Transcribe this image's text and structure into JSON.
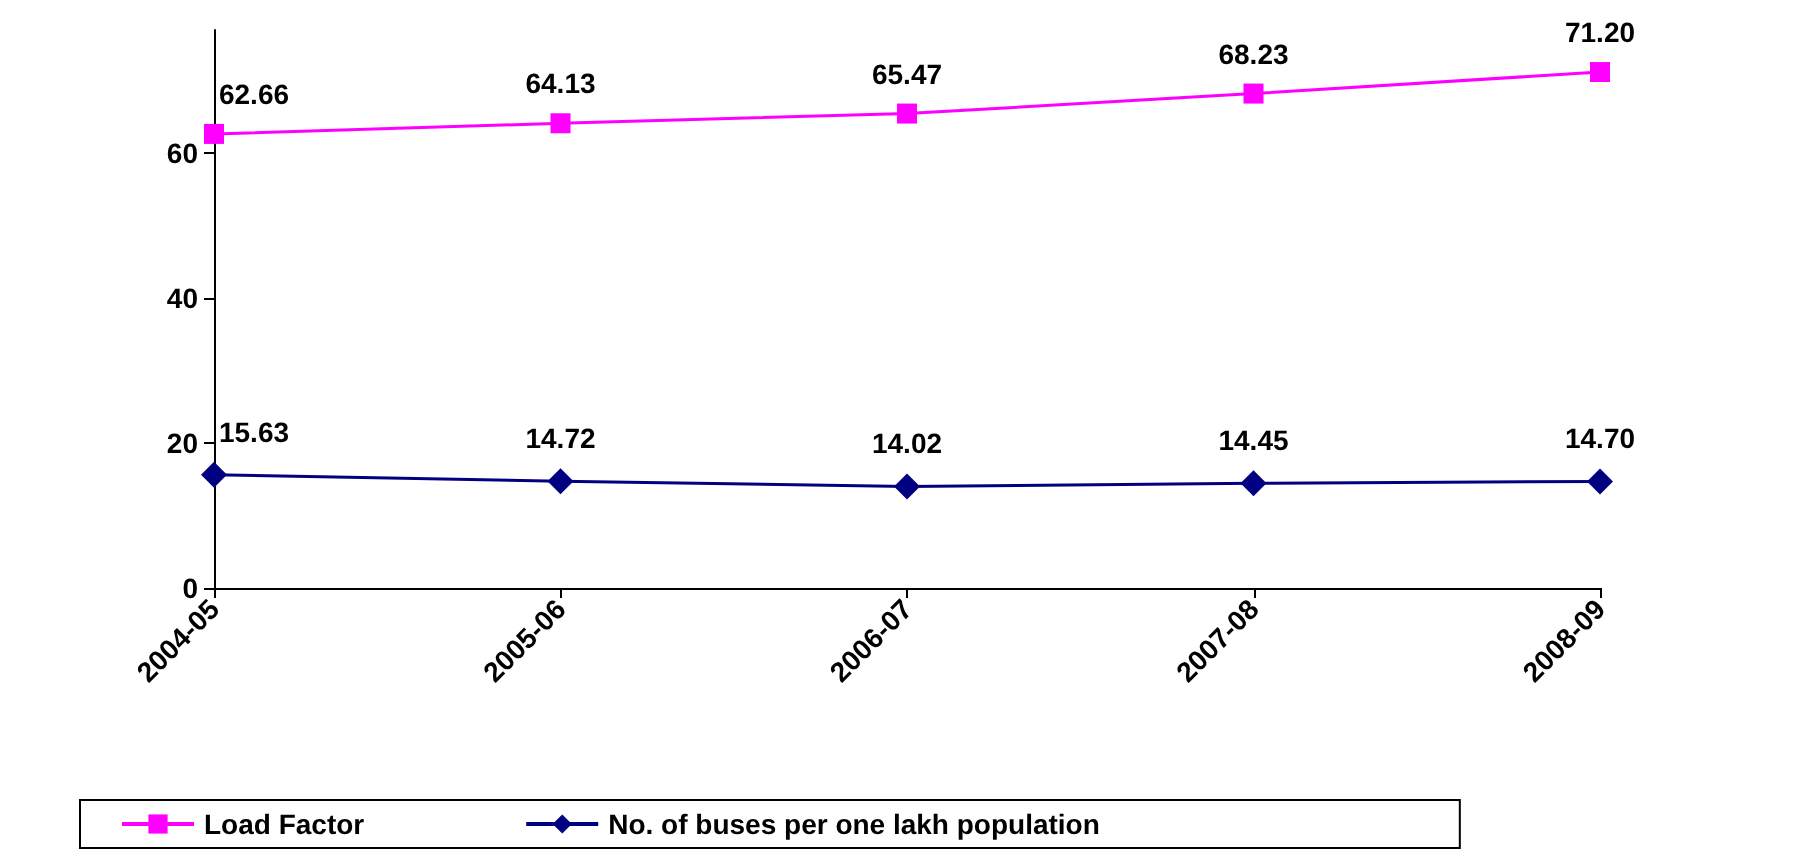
{
  "chart_data": {
    "type": "line",
    "categories": [
      "2004-05",
      "2005-06",
      "2006-07",
      "2007-08",
      "2008-09"
    ],
    "series": [
      {
        "name": "Load Factor",
        "color": "#ff00ff",
        "marker": "square",
        "values": [
          62.66,
          64.13,
          65.47,
          68.23,
          71.2
        ],
        "value_labels": [
          "62.66",
          "64.13",
          "65.47",
          "68.23",
          "71.20"
        ]
      },
      {
        "name": "No. of buses per one lakh population",
        "color": "#000080",
        "marker": "diamond",
        "values": [
          15.63,
          14.72,
          14.02,
          14.45,
          14.7
        ],
        "value_labels": [
          "15.63",
          "14.72",
          "14.02",
          "14.45",
          "14.70"
        ]
      }
    ],
    "ylim": [
      0,
      77
    ],
    "yticks": [
      0,
      20,
      40,
      60
    ],
    "grid": false,
    "legend": "bottom",
    "line_style": "solid"
  }
}
